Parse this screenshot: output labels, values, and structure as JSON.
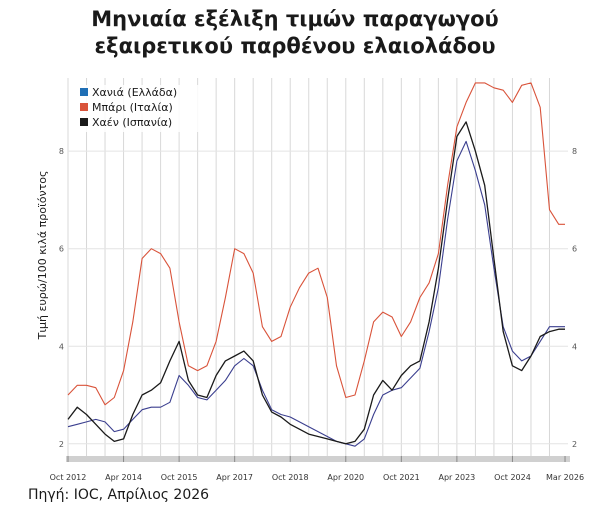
{
  "chart_data": {
    "type": "line",
    "title": "Μηνιαία εξέλιξη τιμών παραγωγού εξαιρετικού παρθένου ελαιολάδου",
    "title_lines": [
      "Μηνιαία εξέλιξη τιμών παραγωγού",
      "εξαιρετικού παρθένου ελαιολάδου"
    ],
    "ylabel": "Τιμή ευρώ/100 κιλά προϊόντος",
    "xlabel": "",
    "ylim": [
      1.75,
      9.5
    ],
    "yticks": [
      2,
      4,
      6,
      8
    ],
    "xlim": [
      2012.75,
      2026.25
    ],
    "xticks": [
      {
        "label": "Oct 2012",
        "x": 2012.75
      },
      {
        "label": "Apr 2014",
        "x": 2014.25
      },
      {
        "label": "Oct 2015",
        "x": 2015.75
      },
      {
        "label": "Apr 2017",
        "x": 2017.25
      },
      {
        "label": "Oct 2018",
        "x": 2018.75
      },
      {
        "label": "Apr 2020",
        "x": 2020.25
      },
      {
        "label": "Oct 2021",
        "x": 2021.75
      },
      {
        "label": "Apr 2023",
        "x": 2023.25
      },
      {
        "label": "Oct 2024",
        "x": 2024.75
      },
      {
        "label": "Mar 2026",
        "x": 2026.17
      }
    ],
    "grid": true,
    "legend_position": "top-left",
    "series": [
      {
        "name": "Χανιά (Ελλάδα)",
        "color": "#3b3f8f",
        "legend_color": "#1f6fb5",
        "points": [
          [
            2012.75,
            2.35
          ],
          [
            2013.0,
            2.4
          ],
          [
            2013.25,
            2.45
          ],
          [
            2013.5,
            2.5
          ],
          [
            2013.75,
            2.45
          ],
          [
            2014.0,
            2.25
          ],
          [
            2014.25,
            2.3
          ],
          [
            2014.5,
            2.5
          ],
          [
            2014.75,
            2.7
          ],
          [
            2015.0,
            2.75
          ],
          [
            2015.25,
            2.75
          ],
          [
            2015.5,
            2.85
          ],
          [
            2015.75,
            3.4
          ],
          [
            2016.0,
            3.2
          ],
          [
            2016.25,
            2.95
          ],
          [
            2016.5,
            2.9
          ],
          [
            2016.75,
            3.1
          ],
          [
            2017.0,
            3.3
          ],
          [
            2017.25,
            3.6
          ],
          [
            2017.5,
            3.75
          ],
          [
            2017.75,
            3.6
          ],
          [
            2018.0,
            3.1
          ],
          [
            2018.25,
            2.7
          ],
          [
            2018.5,
            2.6
          ],
          [
            2018.75,
            2.55
          ],
          [
            2019.0,
            2.45
          ],
          [
            2019.25,
            2.35
          ],
          [
            2019.5,
            2.25
          ],
          [
            2019.75,
            2.15
          ],
          [
            2020.0,
            2.05
          ],
          [
            2020.25,
            2.0
          ],
          [
            2020.5,
            1.95
          ],
          [
            2020.75,
            2.1
          ],
          [
            2021.0,
            2.6
          ],
          [
            2021.25,
            3.0
          ],
          [
            2021.5,
            3.1
          ],
          [
            2021.75,
            3.15
          ],
          [
            2022.0,
            3.35
          ],
          [
            2022.25,
            3.55
          ],
          [
            2022.5,
            4.3
          ],
          [
            2022.75,
            5.2
          ],
          [
            2023.0,
            6.6
          ],
          [
            2023.25,
            7.8
          ],
          [
            2023.5,
            8.2
          ],
          [
            2023.75,
            7.6
          ],
          [
            2024.0,
            6.9
          ],
          [
            2024.25,
            5.6
          ],
          [
            2024.5,
            4.4
          ],
          [
            2024.75,
            3.9
          ],
          [
            2025.0,
            3.7
          ],
          [
            2025.25,
            3.8
          ],
          [
            2025.5,
            4.1
          ],
          [
            2025.75,
            4.4
          ],
          [
            2026.0,
            4.4
          ],
          [
            2026.17,
            4.4
          ]
        ]
      },
      {
        "name": "Μπάρι (Ιταλία)",
        "color": "#d9533a",
        "legend_color": "#d9533a",
        "points": [
          [
            2012.75,
            3.0
          ],
          [
            2013.0,
            3.2
          ],
          [
            2013.25,
            3.2
          ],
          [
            2013.5,
            3.15
          ],
          [
            2013.75,
            2.8
          ],
          [
            2014.0,
            2.95
          ],
          [
            2014.25,
            3.5
          ],
          [
            2014.5,
            4.5
          ],
          [
            2014.75,
            5.8
          ],
          [
            2015.0,
            6.0
          ],
          [
            2015.25,
            5.9
          ],
          [
            2015.5,
            5.6
          ],
          [
            2015.75,
            4.5
          ],
          [
            2016.0,
            3.6
          ],
          [
            2016.25,
            3.5
          ],
          [
            2016.5,
            3.6
          ],
          [
            2016.75,
            4.1
          ],
          [
            2017.0,
            5.0
          ],
          [
            2017.25,
            6.0
          ],
          [
            2017.5,
            5.9
          ],
          [
            2017.75,
            5.5
          ],
          [
            2018.0,
            4.4
          ],
          [
            2018.25,
            4.1
          ],
          [
            2018.5,
            4.2
          ],
          [
            2018.75,
            4.8
          ],
          [
            2019.0,
            5.2
          ],
          [
            2019.25,
            5.5
          ],
          [
            2019.5,
            5.6
          ],
          [
            2019.75,
            5.0
          ],
          [
            2020.0,
            3.6
          ],
          [
            2020.25,
            2.95
          ],
          [
            2020.5,
            3.0
          ],
          [
            2020.75,
            3.7
          ],
          [
            2021.0,
            4.5
          ],
          [
            2021.25,
            4.7
          ],
          [
            2021.5,
            4.6
          ],
          [
            2021.75,
            4.2
          ],
          [
            2022.0,
            4.5
          ],
          [
            2022.25,
            5.0
          ],
          [
            2022.5,
            5.3
          ],
          [
            2022.75,
            5.9
          ],
          [
            2023.0,
            7.3
          ],
          [
            2023.25,
            8.5
          ],
          [
            2023.5,
            9.0
          ],
          [
            2023.75,
            9.4
          ],
          [
            2024.0,
            9.4
          ],
          [
            2024.25,
            9.3
          ],
          [
            2024.5,
            9.25
          ],
          [
            2024.75,
            9.0
          ],
          [
            2025.0,
            9.35
          ],
          [
            2025.25,
            9.4
          ],
          [
            2025.5,
            8.9
          ],
          [
            2025.75,
            6.8
          ],
          [
            2026.0,
            6.5
          ],
          [
            2026.17,
            6.5
          ]
        ]
      },
      {
        "name": "Χαέν (Ισπανία)",
        "color": "#1a1a1a",
        "legend_color": "#1a1a1a",
        "points": [
          [
            2012.75,
            2.5
          ],
          [
            2013.0,
            2.75
          ],
          [
            2013.25,
            2.6
          ],
          [
            2013.5,
            2.4
          ],
          [
            2013.75,
            2.2
          ],
          [
            2014.0,
            2.05
          ],
          [
            2014.25,
            2.1
          ],
          [
            2014.5,
            2.6
          ],
          [
            2014.75,
            3.0
          ],
          [
            2015.0,
            3.1
          ],
          [
            2015.25,
            3.25
          ],
          [
            2015.5,
            3.7
          ],
          [
            2015.75,
            4.1
          ],
          [
            2016.0,
            3.3
          ],
          [
            2016.25,
            3.0
          ],
          [
            2016.5,
            2.95
          ],
          [
            2016.75,
            3.4
          ],
          [
            2017.0,
            3.7
          ],
          [
            2017.25,
            3.8
          ],
          [
            2017.5,
            3.9
          ],
          [
            2017.75,
            3.7
          ],
          [
            2018.0,
            3.0
          ],
          [
            2018.25,
            2.65
          ],
          [
            2018.5,
            2.55
          ],
          [
            2018.75,
            2.4
          ],
          [
            2019.0,
            2.3
          ],
          [
            2019.25,
            2.2
          ],
          [
            2019.5,
            2.15
          ],
          [
            2019.75,
            2.1
          ],
          [
            2020.0,
            2.05
          ],
          [
            2020.25,
            2.0
          ],
          [
            2020.5,
            2.05
          ],
          [
            2020.75,
            2.3
          ],
          [
            2021.0,
            3.0
          ],
          [
            2021.25,
            3.3
          ],
          [
            2021.5,
            3.1
          ],
          [
            2021.75,
            3.4
          ],
          [
            2022.0,
            3.6
          ],
          [
            2022.25,
            3.7
          ],
          [
            2022.5,
            4.5
          ],
          [
            2022.75,
            5.6
          ],
          [
            2023.0,
            7.0
          ],
          [
            2023.25,
            8.3
          ],
          [
            2023.5,
            8.6
          ],
          [
            2023.75,
            8.0
          ],
          [
            2024.0,
            7.3
          ],
          [
            2024.25,
            5.8
          ],
          [
            2024.5,
            4.3
          ],
          [
            2024.75,
            3.6
          ],
          [
            2025.0,
            3.5
          ],
          [
            2025.25,
            3.8
          ],
          [
            2025.5,
            4.2
          ],
          [
            2025.75,
            4.3
          ],
          [
            2026.0,
            4.35
          ],
          [
            2026.17,
            4.35
          ]
        ]
      }
    ]
  },
  "source": "Πηγή: IOC, Απρίλιος 2026"
}
